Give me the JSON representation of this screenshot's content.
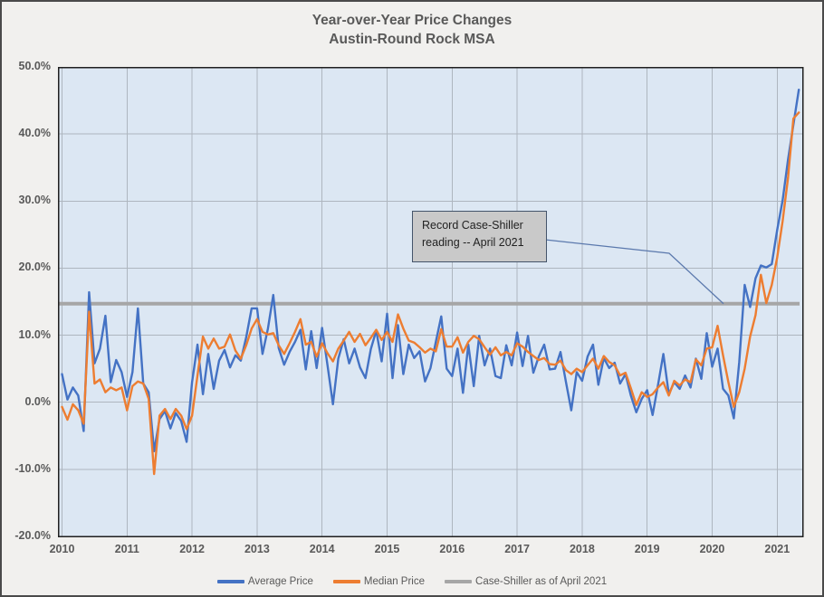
{
  "title": {
    "line1": "Year-over-Year Price Changes",
    "line2": "Austin-Round Rock MSA"
  },
  "annotation": {
    "line1": "Record Case-Shiller",
    "line2": "reading -- April 2021"
  },
  "legend": [
    {
      "label": "Average Price",
      "color": "#4472c4"
    },
    {
      "label": "Median Price",
      "color": "#ed7d31"
    },
    {
      "label": "Case-Shiller as of April 2021",
      "color": "#a6a6a6"
    }
  ],
  "colors": {
    "plot_background": "#dce7f3",
    "gridline": "#aeb6bf",
    "plot_border": "#1f1f1f",
    "page_background": "#f1f0ee",
    "title_text": "#595959",
    "leader_line": "#5b79ad",
    "callout_fill": "#c9c9c9",
    "callout_border": "#44546a"
  },
  "chart_data": {
    "type": "line",
    "title": "Year-over-Year Price Changes Austin-Round Rock MSA",
    "frequency": "monthly",
    "x_start": "2010-01",
    "x_end": "2021-05",
    "x_ticks": [
      "2010",
      "2011",
      "2012",
      "2013",
      "2014",
      "2015",
      "2016",
      "2017",
      "2018",
      "2019",
      "2020",
      "2021"
    ],
    "y_ticks": [
      "50.0%",
      "40.0%",
      "30.0%",
      "20.0%",
      "10.0%",
      "0.0%",
      "-10.0%",
      "-20.0%"
    ],
    "ylim": [
      -20,
      50
    ],
    "grid": true,
    "legend_position": "bottom",
    "reference_line": {
      "name": "Case-Shiller as of April 2021",
      "value": 14.7,
      "color": "#a6a6a6"
    },
    "series": [
      {
        "name": "Average Price",
        "color": "#4472c4",
        "values": [
          4.2,
          0.4,
          2.2,
          1.0,
          -4.3,
          16.4,
          5.8,
          8.0,
          12.9,
          3.0,
          6.3,
          4.5,
          0.8,
          4.5,
          14.0,
          2.8,
          1.5,
          -7.3,
          -2.5,
          -1.3,
          -3.9,
          -1.6,
          -2.8,
          -5.9,
          3.0,
          8.6,
          1.2,
          7.2,
          2.0,
          6.2,
          7.8,
          5.2,
          7.0,
          6.2,
          9.7,
          14.0,
          14.0,
          7.2,
          11.0,
          16.0,
          8.1,
          5.6,
          7.5,
          9.0,
          10.8,
          4.9,
          10.6,
          5.1,
          11.1,
          5.5,
          -0.3,
          6.5,
          9.4,
          5.8,
          8.0,
          5.2,
          3.6,
          7.9,
          10.7,
          6.1,
          13.2,
          3.6,
          11.5,
          4.2,
          8.6,
          6.6,
          7.6,
          3.1,
          5.1,
          9.0,
          12.8,
          5.0,
          3.9,
          8.0,
          1.4,
          8.6,
          2.4,
          9.9,
          5.5,
          8.0,
          3.9,
          3.6,
          8.5,
          5.5,
          10.4,
          5.4,
          9.9,
          4.4,
          6.8,
          8.6,
          4.9,
          5.0,
          7.5,
          3.1,
          -1.2,
          4.5,
          3.2,
          6.8,
          8.6,
          2.6,
          6.6,
          5.1,
          5.9,
          2.8,
          4.2,
          1.0,
          -1.5,
          0.5,
          1.8,
          -1.9,
          2.6,
          7.2,
          1.2,
          3.0,
          2.0,
          4.0,
          2.2,
          6.5,
          3.5,
          10.3,
          5.3,
          8.0,
          2.0,
          1.0,
          -2.4,
          6.0,
          17.5,
          14.2,
          18.5,
          20.4,
          20.1,
          20.6,
          25.7,
          30.1,
          36.2,
          41.4,
          46.6
        ]
      },
      {
        "name": "Median Price",
        "color": "#ed7d31",
        "values": [
          -0.7,
          -2.6,
          -0.3,
          -1.2,
          -3.2,
          13.5,
          2.8,
          3.4,
          1.5,
          2.2,
          1.8,
          2.2,
          -1.2,
          2.4,
          3.1,
          2.8,
          0.5,
          -10.7,
          -2.0,
          -1.0,
          -2.5,
          -1.0,
          -2.0,
          -4.0,
          -2.0,
          4.0,
          9.8,
          8.0,
          9.5,
          8.0,
          8.3,
          10.1,
          7.7,
          6.5,
          8.5,
          11.0,
          12.4,
          10.5,
          10.1,
          10.3,
          8.5,
          7.2,
          8.8,
          10.5,
          12.4,
          8.6,
          9.0,
          6.8,
          8.8,
          7.3,
          6.1,
          8.0,
          9.2,
          10.5,
          9.0,
          10.2,
          8.5,
          9.6,
          10.8,
          9.3,
          10.5,
          9.0,
          13.1,
          11.0,
          9.2,
          8.9,
          8.2,
          7.4,
          8.0,
          7.6,
          10.9,
          8.3,
          8.3,
          9.7,
          7.4,
          9.0,
          9.9,
          9.4,
          8.2,
          7.1,
          8.2,
          7.0,
          7.5,
          7.0,
          8.8,
          8.3,
          7.5,
          6.9,
          6.3,
          6.6,
          5.7,
          5.6,
          6.2,
          4.8,
          4.2,
          5.0,
          4.5,
          5.5,
          6.5,
          5.0,
          6.9,
          6.0,
          5.5,
          4.0,
          4.4,
          2.1,
          -0.4,
          1.5,
          0.8,
          1.2,
          2.2,
          3.0,
          1.0,
          3.2,
          2.5,
          3.4,
          3.0,
          6.4,
          5.5,
          8.0,
          8.2,
          11.4,
          7.0,
          3.0,
          -0.7,
          1.5,
          5.0,
          9.8,
          13.0,
          19.0,
          14.8,
          17.5,
          21.6,
          27.0,
          33.5,
          42.3,
          43.2
        ]
      }
    ]
  }
}
